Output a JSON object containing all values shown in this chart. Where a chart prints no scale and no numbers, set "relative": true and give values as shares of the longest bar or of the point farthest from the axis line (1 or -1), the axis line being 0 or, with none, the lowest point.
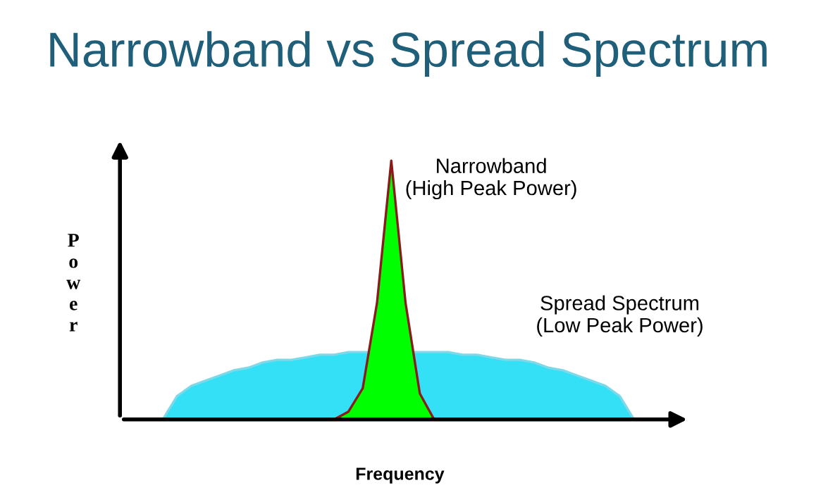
{
  "chart_data": {
    "type": "area",
    "title": "Narrowband vs Spread Spectrum",
    "xlabel": "Frequency",
    "ylabel": "Power",
    "relative": true,
    "grid": false,
    "legend": false,
    "categories": [
      null,
      null,
      null,
      null,
      null,
      null,
      null,
      null,
      null,
      null,
      null,
      null,
      null,
      null,
      null,
      null,
      null,
      null,
      null,
      null,
      null,
      null,
      null,
      null,
      null,
      null,
      null,
      null,
      null,
      null,
      null,
      null,
      null,
      null,
      null,
      null,
      null,
      null,
      null,
      null,
      null
    ],
    "series": [
      {
        "name": "Spread Spectrum\n(Low Peak Power)",
        "color": "#33e0f5",
        "values": [
          null,
          null,
          null,
          0,
          0.09,
          0.13,
          0.15,
          0.17,
          0.19,
          0.2,
          0.22,
          0.23,
          0.23,
          0.24,
          0.25,
          0.25,
          0.26,
          0.26,
          null,
          null,
          null,
          0.26,
          0.26,
          0.26,
          0.25,
          0.25,
          0.24,
          0.23,
          0.23,
          0.22,
          0.2,
          0.19,
          0.17,
          0.15,
          0.13,
          0.09,
          0,
          null,
          null,
          null,
          null
        ]
      },
      {
        "name": "Narrowband\n(High Peak Power)",
        "color": "#00ff00",
        "values": [
          null,
          null,
          null,
          null,
          null,
          null,
          null,
          null,
          null,
          null,
          null,
          null,
          null,
          null,
          null,
          0,
          0.03,
          0.12,
          0.45,
          1,
          0.45,
          0.1,
          0,
          null,
          null,
          null,
          null,
          null,
          null,
          null,
          null,
          null,
          null,
          null,
          null,
          null,
          null,
          null,
          null,
          null,
          null
        ]
      }
    ]
  }
}
